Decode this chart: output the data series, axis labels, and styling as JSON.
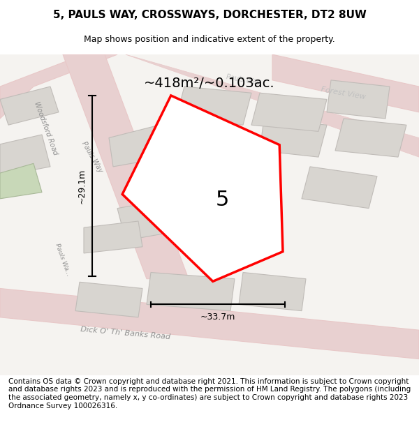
{
  "title": "5, PAULS WAY, CROSSWAYS, DORCHESTER, DT2 8UW",
  "subtitle": "Map shows position and indicative extent of the property.",
  "area_label": "~418m²/~0.103ac.",
  "number_label": "5",
  "width_label": "~33.7m",
  "height_label": "~29.1m",
  "footer_text": "Contains OS data © Crown copyright and database right 2021. This information is subject to Crown copyright and database rights 2023 and is reproduced with the permission of HM Land Registry. The polygons (including the associated geometry, namely x, y co-ordinates) are subject to Crown copyright and database rights 2023 Ordnance Survey 100026316.",
  "bg_color": "#f0eeeb",
  "map_bg": "#f5f3f0",
  "road_color": "#e8c8c8",
  "building_color": "#d8d5d0",
  "building_edge": "#c0bcb8",
  "plot_color": "#ffffff",
  "plot_edge": "#ff0000",
  "road_fill": "#e8d0d0",
  "title_fontsize": 11,
  "subtitle_fontsize": 9,
  "footer_fontsize": 7.5
}
